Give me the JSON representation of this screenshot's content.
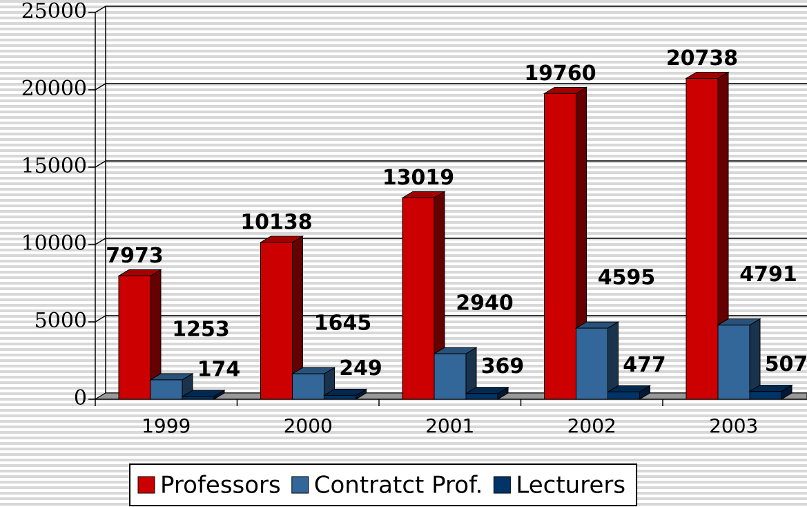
{
  "chart_data": {
    "type": "bar3d",
    "categories": [
      "1999",
      "2000",
      "2001",
      "2002",
      "2003"
    ],
    "series": [
      {
        "name": "Professors",
        "color": "#cc0000",
        "values": [
          7973,
          10138,
          13019,
          19760,
          20738
        ]
      },
      {
        "name": "Contratct Prof.",
        "color": "#336699",
        "values": [
          1253,
          1645,
          2940,
          4595,
          4791
        ]
      },
      {
        "name": "Lecturers",
        "color": "#003366",
        "values": [
          174,
          249,
          369,
          477,
          507
        ]
      }
    ],
    "ylim": [
      0,
      25000
    ],
    "yticks": [
      0,
      5000,
      10000,
      15000,
      20000,
      25000
    ],
    "grid": true,
    "legend": "bottom"
  }
}
